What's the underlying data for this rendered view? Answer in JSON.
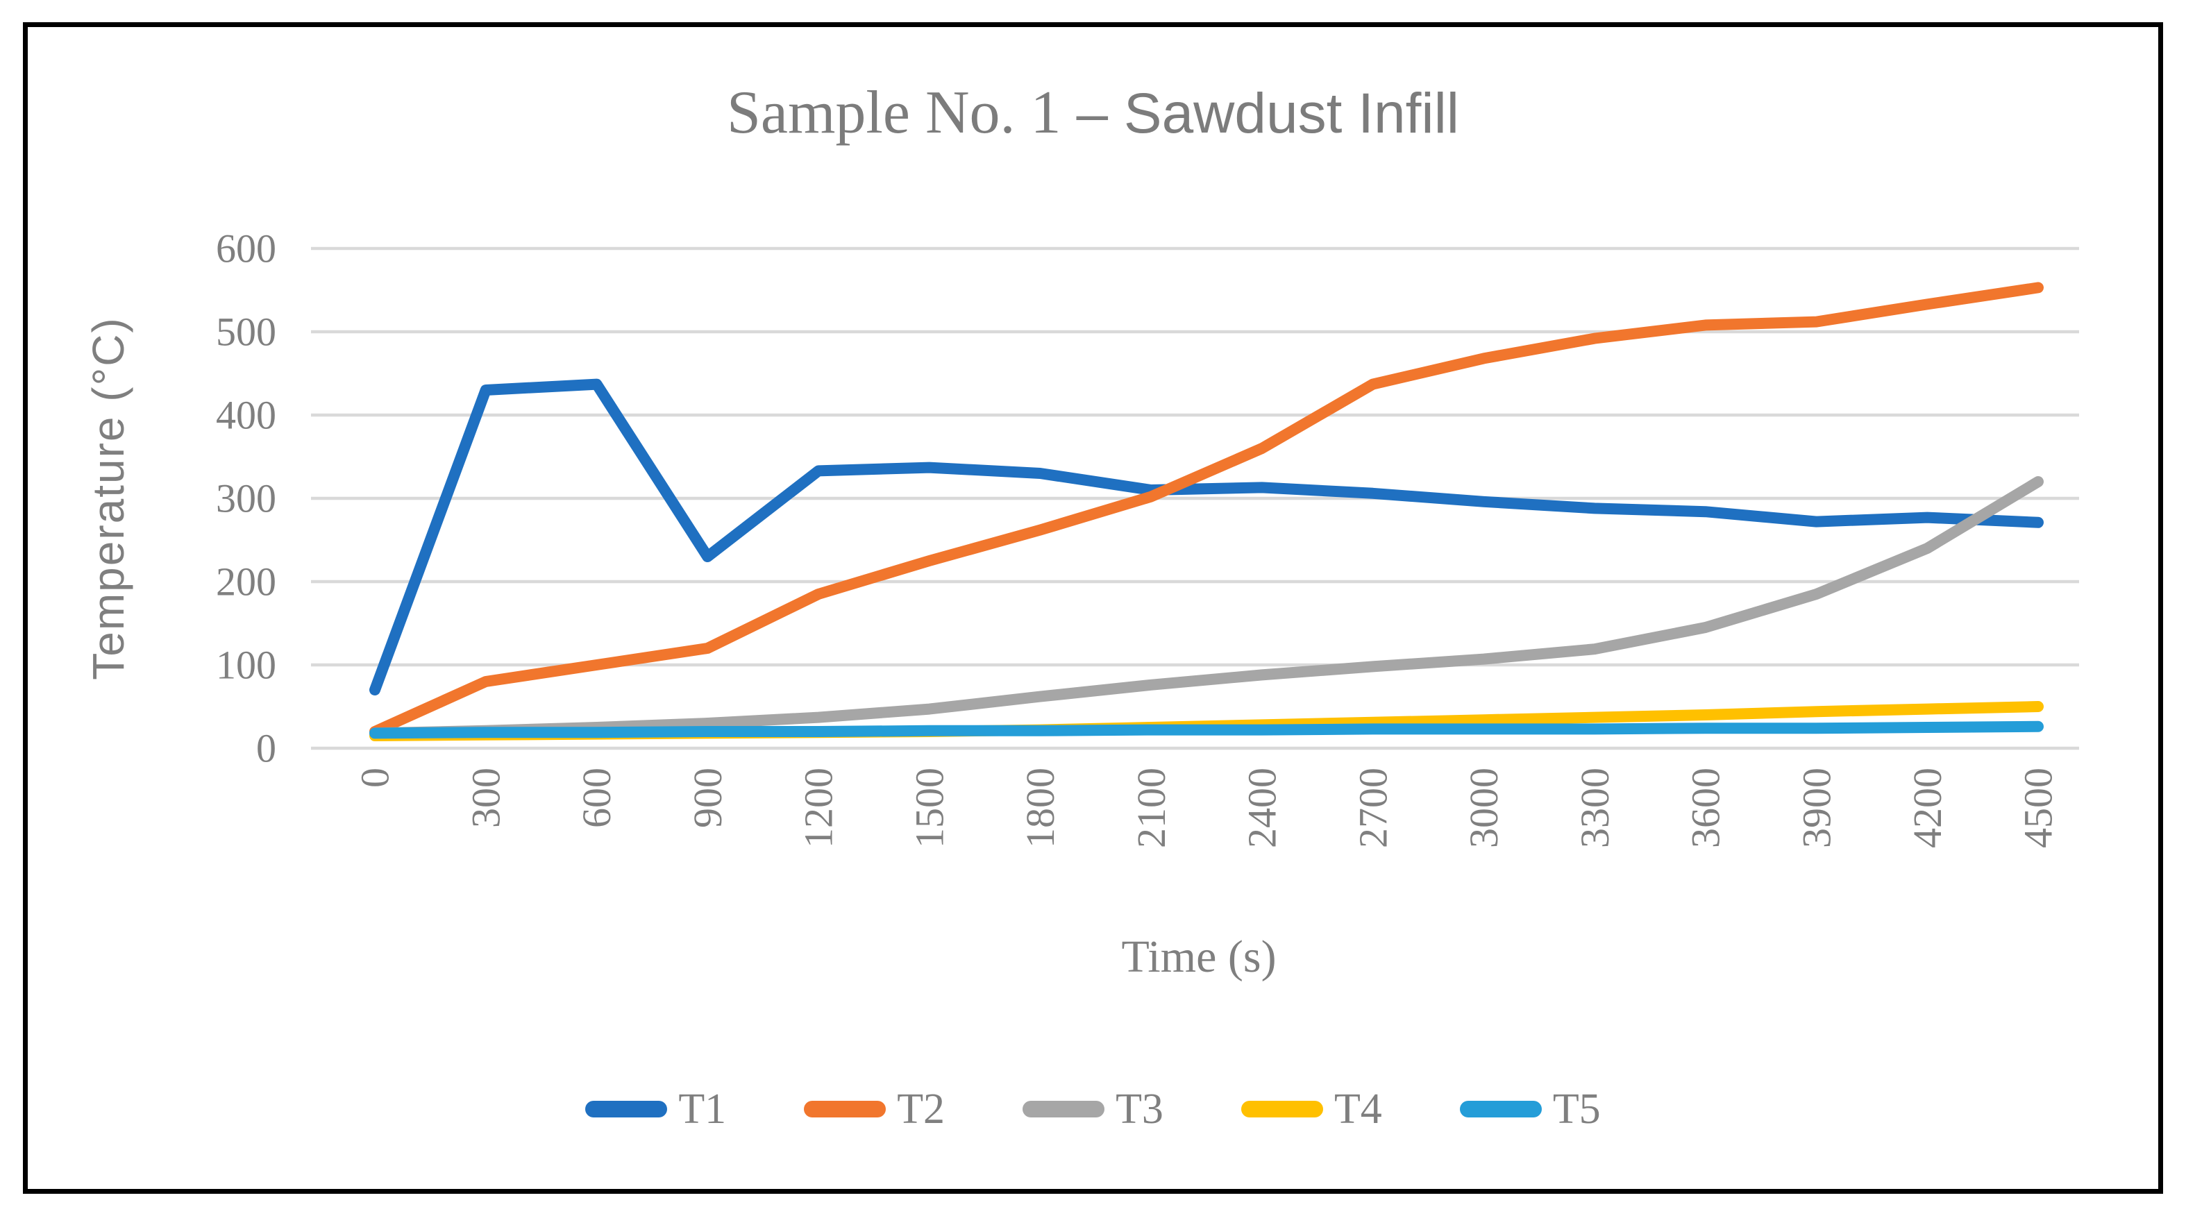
{
  "figure": {
    "title_serif": "Sample No. 1 ",
    "title_sans": "– Sawdust Infill"
  },
  "ui_colors": {
    "background": "#FFFFFF",
    "border": "#000000",
    "gridline": "#D9D9D9",
    "text": "#7F7F7F",
    "title_text": "#7C7C7C"
  },
  "chart_data": {
    "type": "line",
    "title": "Sample No. 1 – Sawdust Infill",
    "xlabel": "Time (s)",
    "ylabel": "Temperature (°C)",
    "xlim": [
      0,
      4500
    ],
    "ylim": [
      0,
      600
    ],
    "x_ticks": [
      0,
      300,
      600,
      900,
      1200,
      1500,
      1800,
      2100,
      2400,
      2700,
      3000,
      3300,
      3600,
      3900,
      4200,
      4500
    ],
    "y_ticks": [
      0,
      100,
      200,
      300,
      400,
      500,
      600
    ],
    "grid": "horizontal",
    "legend_position": "bottom",
    "x": [
      0,
      300,
      600,
      900,
      1200,
      1500,
      1800,
      2100,
      2400,
      2700,
      3000,
      3300,
      3600,
      3900,
      4200,
      4500
    ],
    "series": [
      {
        "name": "T1",
        "color": "#1F70C1",
        "values": [
          70,
          430,
          437,
          230,
          333,
          337,
          330,
          310,
          313,
          306,
          296,
          288,
          284,
          272,
          277,
          271
        ]
      },
      {
        "name": "T2",
        "color": "#F1762D",
        "values": [
          20,
          80,
          100,
          120,
          185,
          225,
          262,
          302,
          360,
          437,
          468,
          492,
          508,
          512,
          533,
          553
        ]
      },
      {
        "name": "T3",
        "color": "#A6A6A6",
        "values": [
          18,
          21,
          25,
          30,
          37,
          47,
          62,
          76,
          88,
          98,
          107,
          119,
          145,
          185,
          240,
          320
        ]
      },
      {
        "name": "T4",
        "color": "#FFC000",
        "values": [
          15,
          16,
          17,
          18,
          19,
          20,
          22,
          25,
          28,
          31,
          34,
          37,
          40,
          44,
          47,
          50
        ]
      },
      {
        "name": "T5",
        "color": "#249DD8",
        "values": [
          18,
          19,
          19,
          20,
          20,
          21,
          21,
          22,
          22,
          23,
          23,
          23,
          24,
          24,
          25,
          26
        ]
      }
    ]
  }
}
